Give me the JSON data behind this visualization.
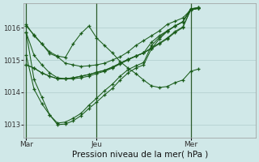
{
  "bg_color": "#d0e8e8",
  "grid_color": "#b0cccc",
  "line_color": "#1a5c1a",
  "marker_color": "#1a5c1a",
  "xlabel": "Pression niveau de la mer( hPa )",
  "yticks": [
    1013,
    1014,
    1015,
    1016
  ],
  "ylim": [
    1012.6,
    1016.75
  ],
  "xtick_labels": [
    "Mar",
    "Jeu",
    "Mer"
  ],
  "xtick_positions": [
    0,
    9,
    21
  ],
  "vline_positions": [
    0,
    9,
    21
  ],
  "xlim": [
    -0.3,
    29.3
  ],
  "series": [
    [
      1016.1,
      1015.75,
      1015.5,
      1015.2,
      1015.1,
      1014.9,
      1014.85,
      1014.8,
      1014.82,
      1014.85,
      1014.9,
      1015.0,
      1015.1,
      1015.25,
      1015.45,
      1015.6,
      1015.75,
      1015.9,
      1016.1,
      1016.2,
      1016.3,
      1016.55,
      1016.6
    ],
    [
      1015.85,
      1015.15,
      1014.85,
      1014.6,
      1014.45,
      1014.42,
      1014.42,
      1014.45,
      1014.5,
      1014.58,
      1014.65,
      1014.75,
      1014.88,
      1015.0,
      1015.12,
      1015.22,
      1015.35,
      1015.5,
      1015.65,
      1015.85,
      1016.0,
      1016.55,
      1016.6
    ],
    [
      1014.85,
      1014.75,
      1014.6,
      1014.5,
      1014.42,
      1014.42,
      1014.45,
      1014.5,
      1014.55,
      1014.62,
      1014.68,
      1014.78,
      1014.9,
      1015.02,
      1015.12,
      1015.22,
      1015.38,
      1015.52,
      1015.68,
      1015.88,
      1016.02,
      1016.55,
      1016.6
    ],
    [
      1014.85,
      1014.75,
      1014.6,
      1014.5,
      1014.42,
      1014.42,
      1014.45,
      1014.5,
      1014.55,
      1014.62,
      1014.68,
      1014.78,
      1014.9,
      1015.02,
      1015.12,
      1015.22,
      1015.55,
      1015.75,
      1015.9,
      1016.05,
      1016.18,
      1016.55,
      1016.6
    ],
    [
      1015.15,
      1014.1,
      1013.65,
      1013.3,
      1013.05,
      1013.08,
      1013.2,
      1013.35,
      1013.6,
      1013.82,
      1014.05,
      1014.25,
      1014.5,
      1014.7,
      1014.82,
      1014.92,
      1015.45,
      1015.7,
      1015.9,
      1016.05,
      1016.18,
      1016.58,
      1016.62
    ],
    [
      1015.85,
      1014.4,
      1013.85,
      1013.3,
      1013.0,
      1013.02,
      1013.12,
      1013.28,
      1013.5,
      1013.7,
      1013.92,
      1014.12,
      1014.38,
      1014.6,
      1014.75,
      1014.85,
      1015.35,
      1015.65,
      1015.88,
      1016.05,
      1016.18,
      1016.58,
      1016.62
    ],
    [
      1016.05,
      1015.78,
      1015.5,
      1015.25,
      1015.12,
      1015.08,
      1015.5,
      1015.82,
      1016.05,
      1015.68,
      1015.45,
      1015.22,
      1014.95,
      1014.75,
      1014.58,
      1014.38,
      1014.2,
      1014.15,
      1014.18,
      1014.3,
      1014.38,
      1014.65,
      1014.72
    ]
  ]
}
